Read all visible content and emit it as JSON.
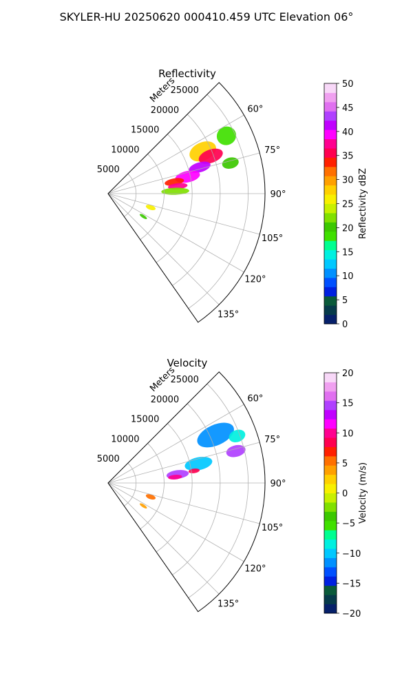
{
  "title": "SKYLER-HU  20250620  000410.459 UTC Elevation 06°",
  "chart_data": [
    {
      "type": "heatmap",
      "subtype": "polar-ppi-sector",
      "title": "Reflectivity",
      "radial_label": "Meters",
      "range_ticks": [
        "5000",
        "10000",
        "15000",
        "20000",
        "25000"
      ],
      "range_values": [
        5000,
        10000,
        15000,
        20000,
        25000
      ],
      "rmax": 28000,
      "azimuth_range_deg": [
        45,
        145
      ],
      "azimuth_ticks": [
        "60°",
        "75°",
        "90°",
        "105°",
        "120°",
        "135°"
      ],
      "azimuth_values": [
        60,
        75,
        90,
        105,
        120,
        135
      ],
      "grid": true,
      "colorbar": {
        "label": "Reflectivity dBZ",
        "vmin": 0,
        "vmax": 50,
        "ticks": [
          "0",
          "5",
          "10",
          "15",
          "20",
          "25",
          "30",
          "35",
          "40",
          "45",
          "50"
        ],
        "tick_values": [
          0,
          5,
          10,
          15,
          20,
          25,
          30,
          35,
          40,
          45,
          50
        ],
        "colors": [
          "#06206a",
          "#063a4a",
          "#0a5a3a",
          "#0020e0",
          "#0050ff",
          "#0090ff",
          "#00c8ff",
          "#00f0e0",
          "#00ff90",
          "#40e000",
          "#3cc800",
          "#80e000",
          "#c8f000",
          "#f8f000",
          "#ffd000",
          "#ffa000",
          "#ff7000",
          "#ff2000",
          "#ff0050",
          "#ff0090",
          "#ff00ff",
          "#c000ff",
          "#b040ff",
          "#e070f0",
          "#f0a0f0",
          "#f8d8f8"
        ]
      },
      "echoes": [
        {
          "az": 66,
          "r": 18500,
          "dr": 5000,
          "daz": 10,
          "value": 28
        },
        {
          "az": 70,
          "r": 19500,
          "dr": 4500,
          "daz": 7,
          "value": 36
        },
        {
          "az": 74,
          "r": 17000,
          "dr": 4000,
          "daz": 6,
          "value": 42
        },
        {
          "az": 78,
          "r": 14500,
          "dr": 4500,
          "daz": 8,
          "value": 40
        },
        {
          "az": 80,
          "r": 12000,
          "dr": 3500,
          "daz": 6,
          "value": 33
        },
        {
          "az": 84,
          "r": 12500,
          "dr": 3500,
          "daz": 5,
          "value": 38
        },
        {
          "az": 88,
          "r": 12000,
          "dr": 5000,
          "daz": 6,
          "value": 22
        },
        {
          "az": 64,
          "r": 23500,
          "dr": 3500,
          "daz": 8,
          "value": 18
        },
        {
          "az": 76,
          "r": 22500,
          "dr": 3000,
          "daz": 5,
          "value": 20
        },
        {
          "az": 108,
          "r": 8000,
          "dr": 1800,
          "daz": 6,
          "value": 25
        },
        {
          "az": 123,
          "r": 7500,
          "dr": 1500,
          "daz": 4,
          "value": 20
        }
      ]
    },
    {
      "type": "heatmap",
      "subtype": "polar-ppi-sector",
      "title": "Velocity",
      "radial_label": "Meters",
      "range_ticks": [
        "5000",
        "10000",
        "15000",
        "20000",
        "25000"
      ],
      "range_values": [
        5000,
        10000,
        15000,
        20000,
        25000
      ],
      "rmax": 28000,
      "azimuth_range_deg": [
        45,
        145
      ],
      "azimuth_ticks": [
        "60°",
        "75°",
        "90°",
        "105°",
        "120°",
        "135°"
      ],
      "azimuth_values": [
        60,
        75,
        90,
        105,
        120,
        135
      ],
      "grid": true,
      "colorbar": {
        "label": "Velocity (m/s)",
        "vmin": -20,
        "vmax": 20,
        "ticks": [
          "−20",
          "−15",
          "−10",
          "−5",
          "0",
          "5",
          "10",
          "15",
          "20"
        ],
        "tick_values": [
          -20,
          -15,
          -10,
          -5,
          0,
          5,
          10,
          15,
          20
        ],
        "colors": [
          "#06206a",
          "#063a4a",
          "#0a5a3a",
          "#0020e0",
          "#0050ff",
          "#0090ff",
          "#00c8ff",
          "#00f0e0",
          "#00ff90",
          "#40e000",
          "#3cc800",
          "#80e000",
          "#c8f000",
          "#f8f000",
          "#ffd000",
          "#ffa000",
          "#ff7000",
          "#ff2000",
          "#ff0050",
          "#ff0090",
          "#ff00ff",
          "#c000ff",
          "#b040ff",
          "#e070f0",
          "#f0a0f0",
          "#f8d8f8"
        ]
      },
      "echoes": [
        {
          "az": 66,
          "r": 21000,
          "dr": 7000,
          "daz": 10,
          "value": -12
        },
        {
          "az": 70,
          "r": 24500,
          "dr": 3000,
          "daz": 5,
          "value": -8
        },
        {
          "az": 76,
          "r": 23500,
          "dr": 3500,
          "daz": 5,
          "value": 14
        },
        {
          "az": 78,
          "r": 16500,
          "dr": 5000,
          "daz": 8,
          "value": -10
        },
        {
          "az": 83,
          "r": 12500,
          "dr": 4000,
          "daz": 7,
          "value": 15
        },
        {
          "az": 85,
          "r": 12000,
          "dr": 2500,
          "daz": 4,
          "value": 10
        },
        {
          "az": 82,
          "r": 15500,
          "dr": 2000,
          "daz": 3,
          "value": 8
        },
        {
          "az": 108,
          "r": 8000,
          "dr": 1800,
          "daz": 6,
          "value": 6
        },
        {
          "az": 123,
          "r": 7500,
          "dr": 1500,
          "daz": 4,
          "value": 4
        }
      ]
    }
  ]
}
